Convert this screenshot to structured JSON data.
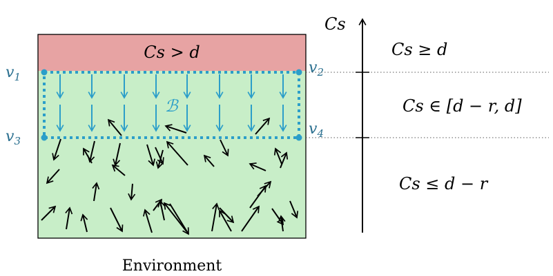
{
  "environment": {
    "caption": "Environment",
    "unsafe_region_label": "Cs > d",
    "band_label": "ℬ",
    "vertices": {
      "v1": "v",
      "v1_sub": "1",
      "v2": "v",
      "v2_sub": "2",
      "v3": "v",
      "v3_sub": "3",
      "v4": "v",
      "v4_sub": "4"
    }
  },
  "axis": {
    "label": "Cs",
    "regions": [
      {
        "id": "upper",
        "text": "Cs ≥ d"
      },
      {
        "id": "middle",
        "text": "Cs ∈ [d − r, d]"
      },
      {
        "id": "lower",
        "text": "Cs ≤ d − r"
      }
    ]
  },
  "colors": {
    "unsafe_fill": "#e7a3a3",
    "safe_fill": "#c8eec8",
    "band_border": "#2b9ec9",
    "band_arrows": "#2b9ec9",
    "random_arrows": "#000000",
    "vertex_text": "#2a6f8f"
  }
}
